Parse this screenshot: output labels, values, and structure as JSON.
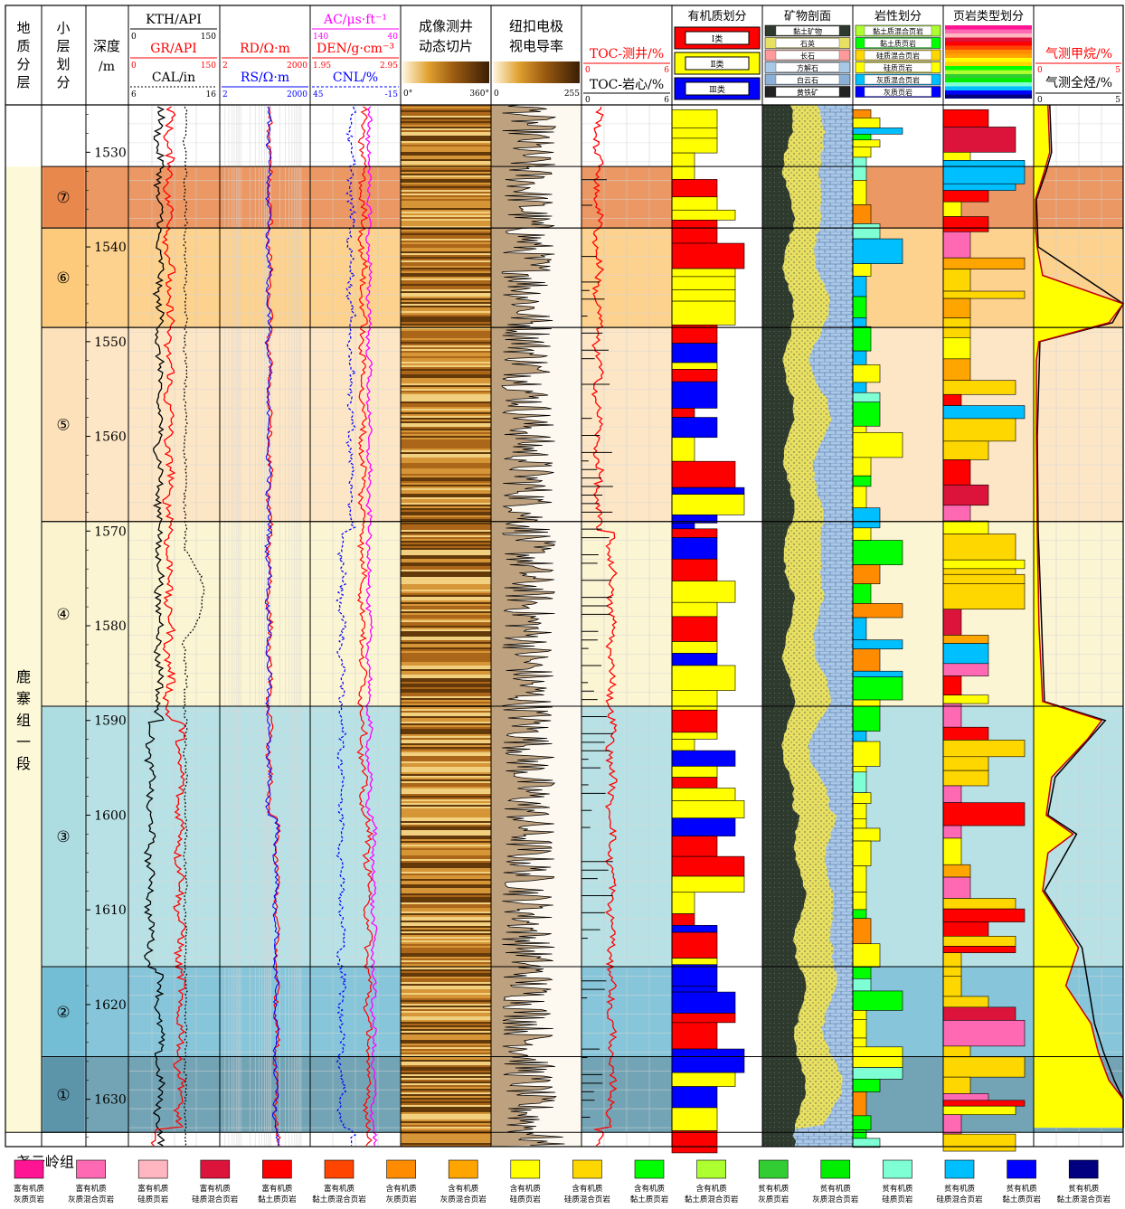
{
  "headers": {
    "strat": [
      "地",
      "质",
      "分",
      "层"
    ],
    "sub": [
      "小",
      "层",
      "划",
      "分"
    ],
    "depth": [
      "深度",
      "/m"
    ],
    "track1": {
      "kth": "KTH/API",
      "gr": "GR/API",
      "cal": "CAL/in",
      "kth_min": "0",
      "kth_max": "150",
      "gr_min": "0",
      "gr_max": "150",
      "cal_min": "6",
      "cal_max": "16"
    },
    "track2": {
      "rd": "RD/Ω·m",
      "rs": "RS/Ω·m",
      "rd_min": "2",
      "rd_max": "2000",
      "rs_min": "2",
      "rs_max": "2000"
    },
    "track3": {
      "ac": "AC/μs·ft⁻¹",
      "den": "DEN/g·cm⁻³",
      "cnl": "CNL/%",
      "ac_min": "140",
      "ac_max": "40",
      "den_min": "1.95",
      "den_max": "2.95",
      "cnl_min": "45",
      "cnl_max": "-15"
    },
    "track4": {
      "l1": "成像测井",
      "l2": "动态切片",
      "min": "0°",
      "max": "360°"
    },
    "track5": {
      "l1": "纽扣电极",
      "l2": "视电导率",
      "min": "0",
      "max": "255"
    },
    "track6": {
      "toc_well": "TOC-测井/%",
      "toc_core": "TOC-岩心/%",
      "w_min": "0",
      "w_max": "6",
      "c_min": "0",
      "c_max": "6"
    },
    "track7": {
      "title": "有机质划分",
      "k1": "Ⅰ类",
      "k2": "Ⅱ类",
      "k3": "Ⅲ类"
    },
    "track8": {
      "title": "矿物剖面",
      "items": [
        "黏土矿物",
        "石英",
        "长石",
        "方解石",
        "白云石",
        "黄铁矿"
      ]
    },
    "track9": {
      "title": "岩性划分",
      "items": [
        "黏土质混合页岩",
        "黏土质页岩",
        "硅质混合页岩",
        "硅质页岩",
        "灰质混合页岩",
        "灰质页岩"
      ]
    },
    "track10": {
      "title": "页岩类型划分"
    },
    "track11": {
      "ch4": "气测甲烷/%",
      "tg": "气测全烃/%",
      "min1": "0",
      "max1": "5",
      "min2": "0",
      "max2": "5"
    }
  },
  "formations": {
    "upper": [
      "鹿",
      "寨",
      "组",
      "一",
      "段"
    ],
    "lower": "尧云岭组"
  },
  "sublayers": [
    "⑦",
    "⑥",
    "⑤",
    "④",
    "③",
    "②",
    "①"
  ],
  "depth_ticks": [
    "1530",
    "1540",
    "1550",
    "1560",
    "1570",
    "1580",
    "1590",
    "1600",
    "1610",
    "1620",
    "1630"
  ],
  "chart_data": {
    "type": "well-log",
    "depth_range_m": [
      1525,
      1635
    ],
    "sublayers": [
      {
        "id": "⑦",
        "top": 1531.5,
        "bottom": 1538
      },
      {
        "id": "⑥",
        "top": 1538,
        "bottom": 1548.5
      },
      {
        "id": "⑤",
        "top": 1548.5,
        "bottom": 1569
      },
      {
        "id": "④",
        "top": 1569,
        "bottom": 1588.5
      },
      {
        "id": "③",
        "top": 1588.5,
        "bottom": 1616
      },
      {
        "id": "②",
        "top": 1616,
        "bottom": 1625.5
      },
      {
        "id": "①",
        "top": 1625.5,
        "bottom": 1633.5
      }
    ],
    "formation_boundary_m": 1633.5,
    "methane_pct": [
      [
        1525,
        0.8
      ],
      [
        1530,
        0.9
      ],
      [
        1532,
        0.6
      ],
      [
        1535,
        0.1
      ],
      [
        1538,
        0.1
      ],
      [
        1540,
        0.2
      ],
      [
        1543,
        0.5
      ],
      [
        1546,
        5.0
      ],
      [
        1548,
        4.2
      ],
      [
        1550,
        0.3
      ],
      [
        1552,
        0.15
      ],
      [
        1560,
        0.15
      ],
      [
        1570,
        0.2
      ],
      [
        1580,
        0.3
      ],
      [
        1588,
        0.5
      ],
      [
        1590,
        3.8
      ],
      [
        1592,
        3.0
      ],
      [
        1596,
        1.0
      ],
      [
        1600,
        0.7
      ],
      [
        1602,
        2.2
      ],
      [
        1604,
        0.8
      ],
      [
        1608,
        0.5
      ],
      [
        1610,
        1.2
      ],
      [
        1614,
        2.5
      ],
      [
        1618,
        1.8
      ],
      [
        1622,
        3.2
      ],
      [
        1625,
        3.6
      ],
      [
        1628,
        4.2
      ],
      [
        1630,
        5.0
      ],
      [
        1633,
        5.0
      ]
    ],
    "total_gas_pct": [
      [
        1525,
        0.9
      ],
      [
        1530,
        1.0
      ],
      [
        1532,
        0.7
      ],
      [
        1535,
        0.15
      ],
      [
        1540,
        0.25
      ],
      [
        1546,
        5.0
      ],
      [
        1548,
        4.4
      ],
      [
        1550,
        0.35
      ],
      [
        1560,
        0.2
      ],
      [
        1570,
        0.25
      ],
      [
        1588,
        0.6
      ],
      [
        1590,
        4.0
      ],
      [
        1596,
        1.2
      ],
      [
        1600,
        0.8
      ],
      [
        1602,
        2.4
      ],
      [
        1608,
        0.6
      ],
      [
        1614,
        2.7
      ],
      [
        1622,
        3.4
      ],
      [
        1625,
        3.9
      ],
      [
        1628,
        4.5
      ],
      [
        1630,
        5.0
      ],
      [
        1633,
        5.0
      ]
    ]
  },
  "legend": [
    {
      "color": "#ff1493",
      "l1": "富有机质",
      "l2": "灰质页岩"
    },
    {
      "color": "#ff69b4",
      "l1": "富有机质",
      "l2": "灰质混合页岩"
    },
    {
      "color": "#ffb6c1",
      "l1": "富有机质",
      "l2": "硅质页岩"
    },
    {
      "color": "#dc143c",
      "l1": "富有机质",
      "l2": "硅质混合页岩"
    },
    {
      "color": "#ff0000",
      "l1": "富有机质",
      "l2": "黏土质页岩"
    },
    {
      "color": "#ff4500",
      "l1": "富有机质",
      "l2": "黏土质混合页岩"
    },
    {
      "color": "#ff8c00",
      "l1": "含有机质",
      "l2": "灰质页岩"
    },
    {
      "color": "#ffa500",
      "l1": "含有机质",
      "l2": "灰质混合页岩"
    },
    {
      "color": "#ffff00",
      "l1": "含有机质",
      "l2": "硅质页岩"
    },
    {
      "color": "#ffd700",
      "l1": "含有机质",
      "l2": "硅质混合页岩"
    },
    {
      "color": "#00ff00",
      "l1": "含有机质",
      "l2": "黏土质页岩"
    },
    {
      "color": "#adff2f",
      "l1": "含有机质",
      "l2": "黏土质混合页岩"
    },
    {
      "color": "#32cd32",
      "l1": "贫有机质",
      "l2": "灰质页岩"
    },
    {
      "color": "#00ee00",
      "l1": "贫有机质",
      "l2": "灰质混合页岩"
    },
    {
      "color": "#7fffd4",
      "l1": "贫有机质",
      "l2": "硅质页岩"
    },
    {
      "color": "#00bfff",
      "l1": "贫有机质",
      "l2": "硅质混合页岩"
    },
    {
      "color": "#0000ff",
      "l1": "贫有机质",
      "l2": "黏土质页岩"
    },
    {
      "color": "#000080",
      "l1": "贫有机质",
      "l2": "黏土质混合页岩"
    }
  ]
}
